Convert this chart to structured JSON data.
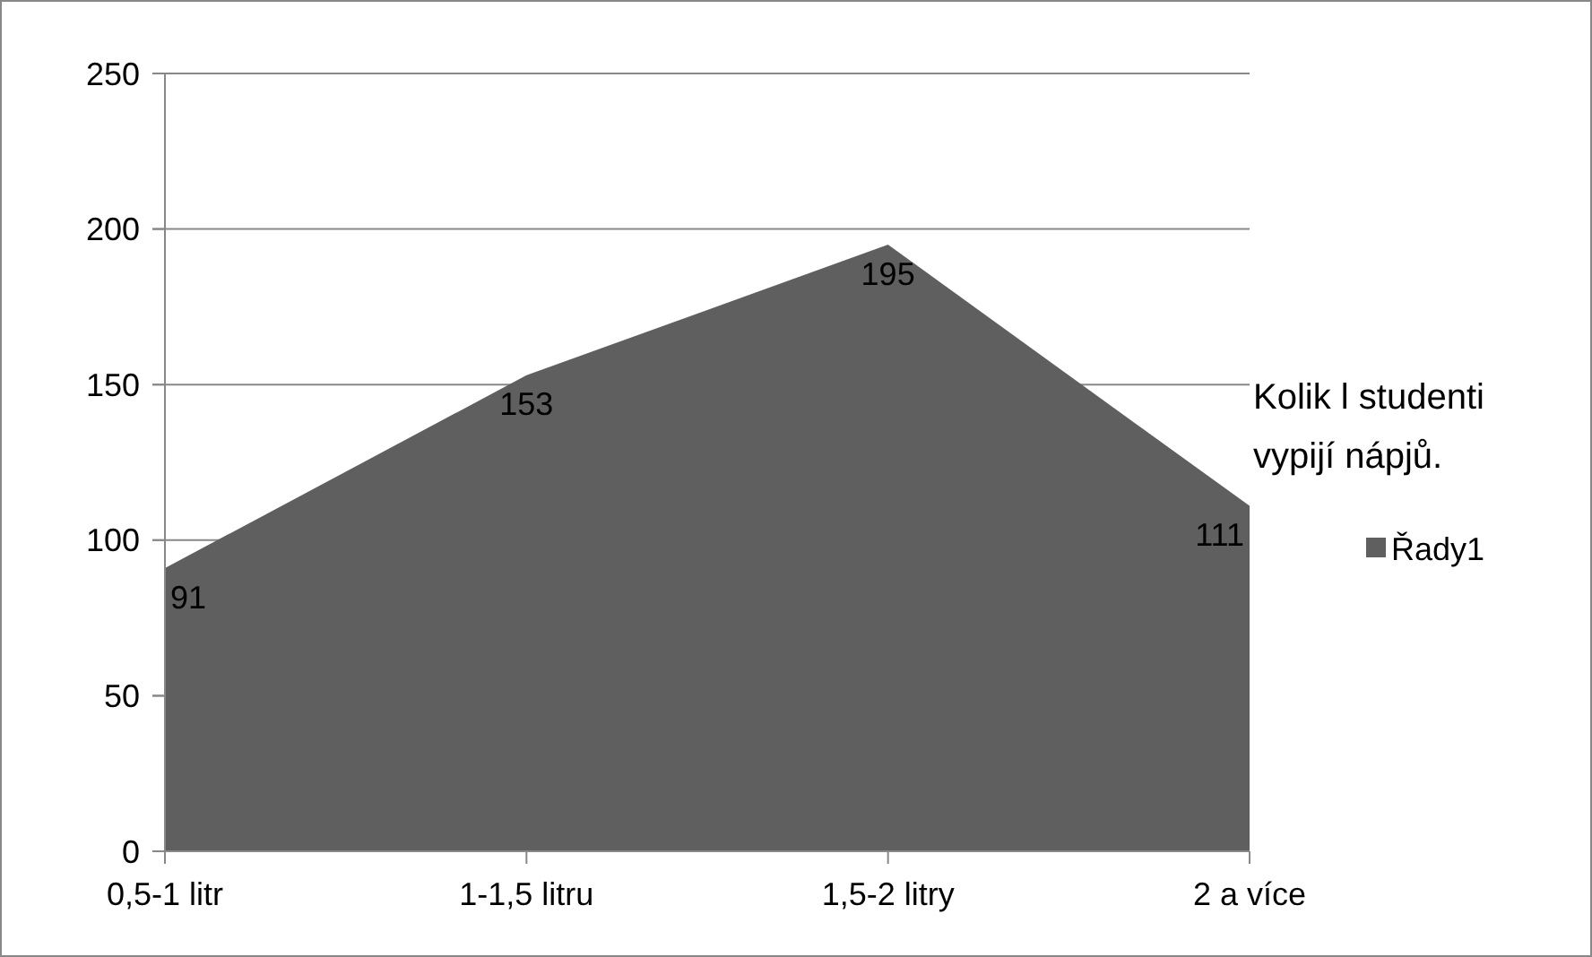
{
  "chart_data": {
    "type": "area",
    "title": "Kolik l studenti vypijí nápjů.",
    "categories": [
      "0,5-1 litr",
      "1-1,5 litru",
      "1,5-2 litry",
      "2 a více"
    ],
    "series": [
      {
        "name": "Řady1",
        "color": "#5f5f5f",
        "values": [
          91,
          153,
          195,
          111
        ]
      }
    ],
    "ylim": [
      0,
      250
    ],
    "yticks": [
      0,
      50,
      100,
      150,
      200,
      250
    ],
    "grid": "y",
    "legend": "right",
    "data_labels": true
  }
}
